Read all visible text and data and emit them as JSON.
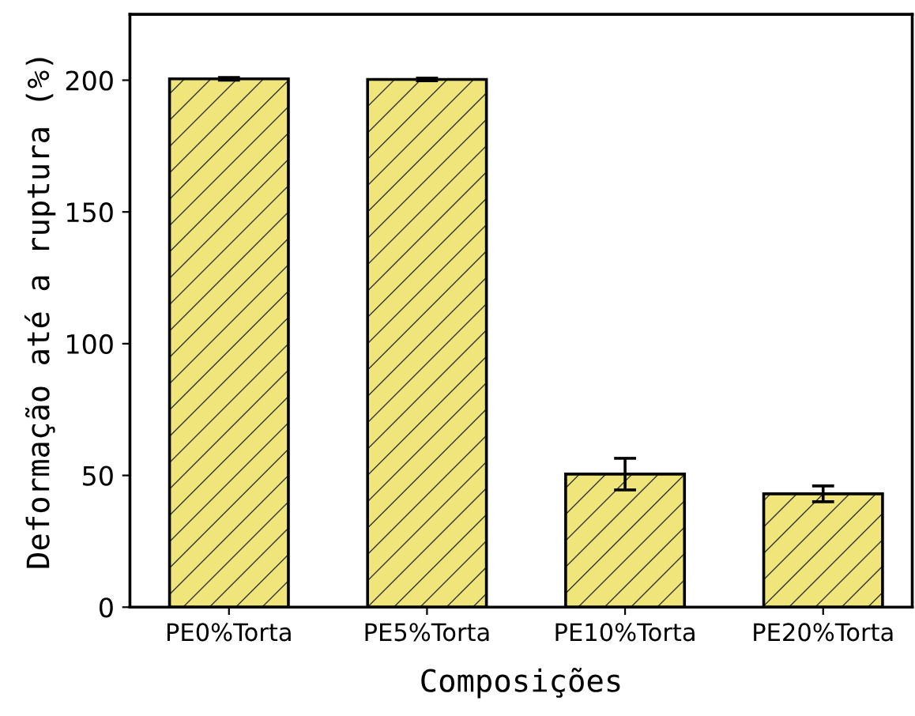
{
  "chart_data": {
    "type": "bar",
    "xlabel": "Composições",
    "ylabel": "Deformação até a ruptura (%)",
    "categories": [
      "PE0%Torta",
      "PE5%Torta",
      "PE10%Torta",
      "PE20%Torta"
    ],
    "values": [
      200.5,
      200.3,
      50.5,
      43
    ],
    "errors": [
      0.5,
      0.5,
      6,
      3
    ],
    "color": "#efe57a",
    "ylim": [
      0,
      225
    ],
    "yticks": [
      0,
      50,
      100,
      150,
      200
    ],
    "grid": false
  }
}
